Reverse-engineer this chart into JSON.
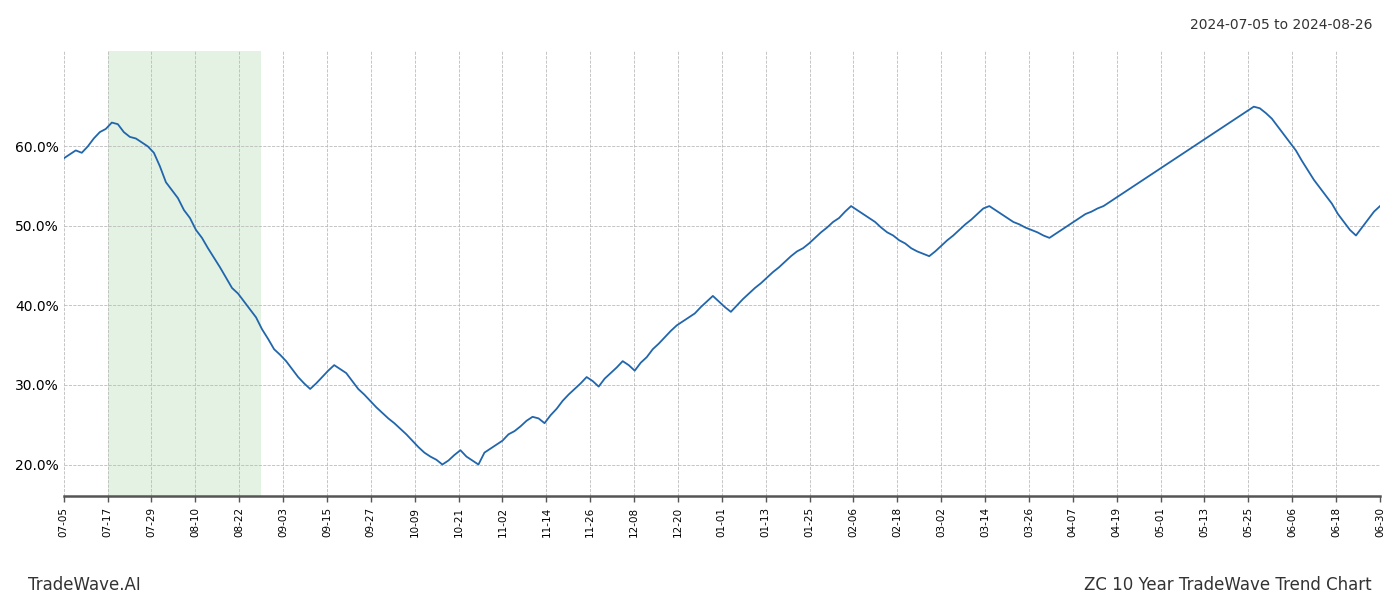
{
  "title_topright": "2024-07-05 to 2024-08-26",
  "title_bottomleft": "TradeWave.AI",
  "title_bottomright": "ZC 10 Year TradeWave Trend Chart",
  "line_color": "#2166ac",
  "shade_color": "#c8e6c9",
  "shade_alpha": 0.5,
  "ylim": [
    0.16,
    0.72
  ],
  "yticks": [
    0.2,
    0.3,
    0.4,
    0.5,
    0.6
  ],
  "ytick_labels": [
    "20.0%",
    "30.0%",
    "40.0%",
    "50.0%",
    "60.0%"
  ],
  "xtick_labels": [
    "07-05",
    "07-17",
    "07-29",
    "08-10",
    "08-22",
    "09-03",
    "09-15",
    "09-27",
    "10-09",
    "10-21",
    "11-02",
    "11-14",
    "11-26",
    "12-08",
    "12-20",
    "01-01",
    "01-13",
    "01-25",
    "02-06",
    "02-18",
    "03-02",
    "03-14",
    "03-26",
    "04-07",
    "04-19",
    "05-01",
    "05-13",
    "05-25",
    "06-06",
    "06-18",
    "06-30"
  ],
  "shade_xstart": 0.065,
  "shade_xend": 0.225,
  "values": [
    0.585,
    0.59,
    0.595,
    0.592,
    0.6,
    0.61,
    0.618,
    0.622,
    0.63,
    0.628,
    0.618,
    0.612,
    0.61,
    0.605,
    0.6,
    0.592,
    0.575,
    0.555,
    0.545,
    0.535,
    0.52,
    0.51,
    0.495,
    0.485,
    0.472,
    0.46,
    0.448,
    0.435,
    0.422,
    0.415,
    0.405,
    0.395,
    0.385,
    0.37,
    0.358,
    0.345,
    0.338,
    0.33,
    0.32,
    0.31,
    0.302,
    0.295,
    0.302,
    0.31,
    0.318,
    0.325,
    0.32,
    0.315,
    0.305,
    0.295,
    0.288,
    0.28,
    0.272,
    0.265,
    0.258,
    0.252,
    0.245,
    0.238,
    0.23,
    0.222,
    0.215,
    0.21,
    0.206,
    0.2,
    0.205,
    0.212,
    0.218,
    0.21,
    0.205,
    0.2,
    0.215,
    0.22,
    0.225,
    0.23,
    0.238,
    0.242,
    0.248,
    0.255,
    0.26,
    0.258,
    0.252,
    0.262,
    0.27,
    0.28,
    0.288,
    0.295,
    0.302,
    0.31,
    0.305,
    0.298,
    0.308,
    0.315,
    0.322,
    0.33,
    0.325,
    0.318,
    0.328,
    0.335,
    0.345,
    0.352,
    0.36,
    0.368,
    0.375,
    0.38,
    0.385,
    0.39,
    0.398,
    0.405,
    0.412,
    0.405,
    0.398,
    0.392,
    0.4,
    0.408,
    0.415,
    0.422,
    0.428,
    0.435,
    0.442,
    0.448,
    0.455,
    0.462,
    0.468,
    0.472,
    0.478,
    0.485,
    0.492,
    0.498,
    0.505,
    0.51,
    0.518,
    0.525,
    0.52,
    0.515,
    0.51,
    0.505,
    0.498,
    0.492,
    0.488,
    0.482,
    0.478,
    0.472,
    0.468,
    0.465,
    0.462,
    0.468,
    0.475,
    0.482,
    0.488,
    0.495,
    0.502,
    0.508,
    0.515,
    0.522,
    0.525,
    0.52,
    0.515,
    0.51,
    0.505,
    0.502,
    0.498,
    0.495,
    0.492,
    0.488,
    0.485,
    0.49,
    0.495,
    0.5,
    0.505,
    0.51,
    0.515,
    0.518,
    0.522,
    0.525,
    0.53,
    0.535,
    0.54,
    0.545,
    0.55,
    0.555,
    0.56,
    0.565,
    0.57,
    0.575,
    0.58,
    0.585,
    0.59,
    0.595,
    0.6,
    0.605,
    0.61,
    0.615,
    0.62,
    0.625,
    0.63,
    0.635,
    0.64,
    0.645,
    0.65,
    0.648,
    0.642,
    0.635,
    0.625,
    0.615,
    0.605,
    0.595,
    0.582,
    0.57,
    0.558,
    0.548,
    0.538,
    0.528,
    0.515,
    0.505,
    0.495,
    0.488,
    0.498,
    0.508,
    0.518,
    0.525
  ]
}
